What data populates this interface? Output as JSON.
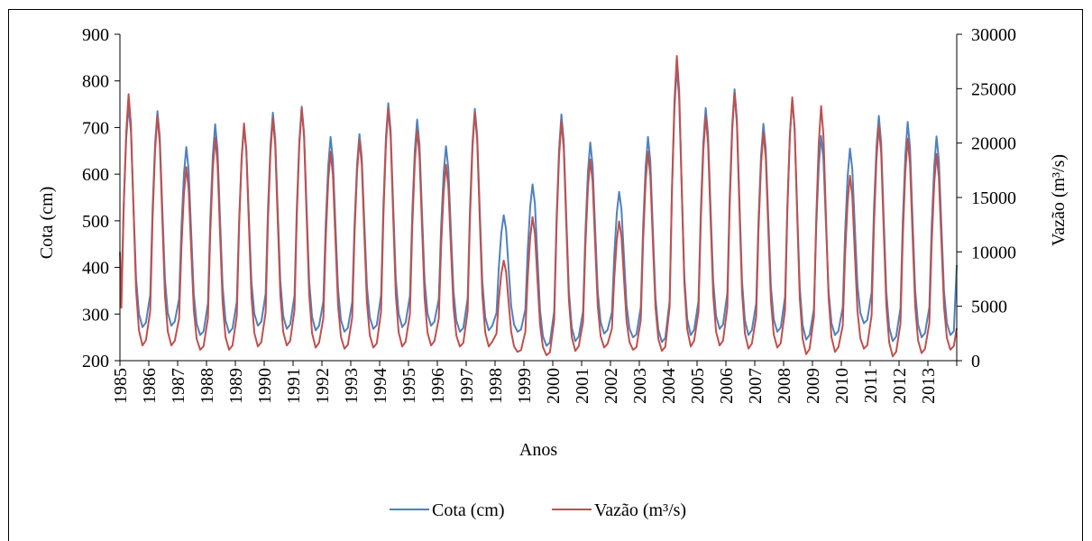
{
  "chart_data": {
    "type": "line",
    "xlabel": "Anos",
    "ylabel_left": "Cota (cm)",
    "ylabel_right": "Vazão (m³/s)",
    "ylim_left": [
      200,
      900
    ],
    "yticks_left": [
      200,
      300,
      400,
      500,
      600,
      700,
      800,
      900
    ],
    "ylim_right": [
      0,
      30000
    ],
    "yticks_right": [
      0,
      5000,
      10000,
      15000,
      20000,
      25000,
      30000
    ],
    "xlim": [
      1985,
      2014
    ],
    "x_tick_labels": [
      "1985",
      "1986",
      "1987",
      "1988",
      "1989",
      "1990",
      "1991",
      "1992",
      "1993",
      "1994",
      "1995",
      "1996",
      "1997",
      "1998",
      "1999",
      "2000",
      "2001",
      "2002",
      "2003",
      "2004",
      "2005",
      "2006",
      "2007",
      "2008",
      "2009",
      "2010",
      "2011",
      "2012",
      "2013"
    ],
    "grid": false,
    "legend_position": "bottom",
    "colors": {
      "cota": "#4f81bd",
      "vazao": "#c0504d"
    },
    "series": [
      {
        "name": "Cota (cm)",
        "axis": "left",
        "annual_peaks_low": {
          "years": [
            1985,
            1986,
            1987,
            1988,
            1989,
            1990,
            1991,
            1992,
            1993,
            1994,
            1995,
            1996,
            1997,
            1998,
            1999,
            2000,
            2001,
            2002,
            2003,
            2004,
            2005,
            2006,
            2007,
            2008,
            2009,
            2010,
            2011,
            2012,
            2013
          ],
          "peak": [
            748,
            735,
            658,
            707,
            700,
            732,
            745,
            680,
            686,
            752,
            717,
            660,
            740,
            512,
            578,
            728,
            668,
            562,
            680,
            830,
            742,
            782,
            708,
            760,
            682,
            655,
            725,
            712,
            681
          ],
          "low": [
            272,
            275,
            255,
            260,
            275,
            268,
            265,
            262,
            268,
            272,
            275,
            262,
            265,
            262,
            232,
            242,
            258,
            250,
            240,
            255,
            268,
            255,
            262,
            245,
            255,
            280,
            242,
            250,
            255
          ],
          "end_value": 405
        }
      },
      {
        "name": "Vazão (m³/s)",
        "axis": "right",
        "annual_peaks_low": {
          "years": [
            1985,
            1986,
            1987,
            1988,
            1989,
            1990,
            1991,
            1992,
            1993,
            1994,
            1995,
            1996,
            1997,
            1998,
            1999,
            2000,
            2001,
            2002,
            2003,
            2004,
            2005,
            2006,
            2007,
            2008,
            2009,
            2010,
            2011,
            2012,
            2013
          ],
          "peak": [
            24500,
            22500,
            17800,
            20500,
            21800,
            22300,
            23200,
            19200,
            20300,
            23200,
            21200,
            18000,
            22800,
            9200,
            13200,
            22000,
            18500,
            12800,
            19200,
            28000,
            22500,
            24600,
            21000,
            24200,
            23400,
            17000,
            21600,
            20400,
            19000
          ],
          "low": [
            1400,
            1400,
            1000,
            1000,
            1300,
            1400,
            1200,
            1100,
            1200,
            1300,
            1400,
            1300,
            1300,
            800,
            500,
            900,
            1200,
            1000,
            900,
            1300,
            1400,
            1100,
            1200,
            600,
            800,
            1100,
            400,
            700,
            1000
          ],
          "start_value": 10000,
          "end_value": 3000
        }
      }
    ]
  }
}
